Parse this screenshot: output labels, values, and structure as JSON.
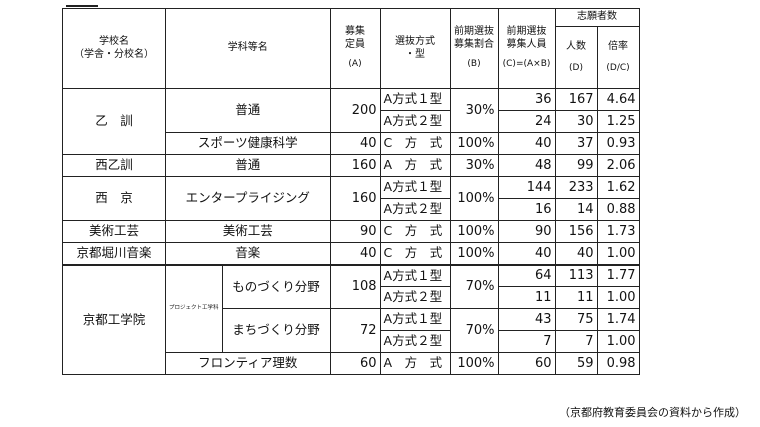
{
  "header": {
    "school": [
      "学校名",
      "（学舎・分校名）"
    ],
    "course": "学科等名",
    "capacity": [
      "募集",
      "定員",
      "(A)"
    ],
    "method": [
      "選抜方式",
      "・型"
    ],
    "ratio": [
      "前期選抜",
      "募集割合",
      "(B)"
    ],
    "early_count": [
      "前期選抜",
      "募集人員",
      "(C)=(A×B)"
    ],
    "applicants_group": "志願者数",
    "applicants": [
      "人数",
      "(D)"
    ],
    "rate": [
      "倍率",
      "(D/C)"
    ]
  },
  "rows": [
    {
      "school": "乙　訓",
      "course": "普通",
      "capacity": "200",
      "ratio": "30%",
      "lines": [
        {
          "method": "A方式１型",
          "count": "36",
          "applicants": "167",
          "rate": "4.64"
        },
        {
          "method": "A方式２型",
          "count": "24",
          "applicants": "30",
          "rate": "1.25"
        }
      ]
    },
    {
      "school": "",
      "course": "スポーツ健康科学",
      "capacity": "40",
      "ratio": "100%",
      "lines": [
        {
          "method": "C　方　式",
          "count": "40",
          "applicants": "37",
          "rate": "0.93"
        }
      ]
    },
    {
      "school": "西乙訓",
      "course": "普通",
      "capacity": "160",
      "ratio": "30%",
      "lines": [
        {
          "method": "A　方　式",
          "count": "48",
          "applicants": "99",
          "rate": "2.06"
        }
      ]
    },
    {
      "school": "西　京",
      "course": "エンタープライジング",
      "capacity": "160",
      "ratio": "100%",
      "lines": [
        {
          "method": "A方式１型",
          "count": "144",
          "applicants": "233",
          "rate": "1.62"
        },
        {
          "method": "A方式２型",
          "count": "16",
          "applicants": "14",
          "rate": "0.88"
        }
      ]
    },
    {
      "school": "美術工芸",
      "course": "美術工芸",
      "capacity": "90",
      "ratio": "100%",
      "lines": [
        {
          "method": "C　方　式",
          "count": "90",
          "applicants": "156",
          "rate": "1.73"
        }
      ]
    },
    {
      "school": "京都堀川音楽",
      "course": "音楽",
      "capacity": "40",
      "ratio": "100%",
      "lines": [
        {
          "method": "C　方　式",
          "count": "40",
          "applicants": "40",
          "rate": "1.00"
        }
      ]
    }
  ],
  "kyoto": {
    "school": "京都工学院",
    "group_label": "プロジェクト工学科",
    "sub": [
      {
        "course": "ものづくり分野",
        "capacity": "108",
        "ratio": "70%",
        "lines": [
          {
            "method": "A方式１型",
            "count": "64",
            "applicants": "113",
            "rate": "1.77"
          },
          {
            "method": "A方式２型",
            "count": "11",
            "applicants": "11",
            "rate": "1.00"
          }
        ]
      },
      {
        "course": "まちづくり分野",
        "capacity": "72",
        "ratio": "70%",
        "lines": [
          {
            "method": "A方式１型",
            "count": "43",
            "applicants": "75",
            "rate": "1.74"
          },
          {
            "method": "A方式２型",
            "count": "7",
            "applicants": "7",
            "rate": "1.00"
          }
        ]
      }
    ],
    "frontier": {
      "course": "フロンティア理数",
      "capacity": "60",
      "ratio": "100%",
      "method": "A　方　式",
      "count": "60",
      "applicants": "59",
      "rate": "0.98"
    }
  },
  "source": "（京都府教育委員会の資料から作成）"
}
